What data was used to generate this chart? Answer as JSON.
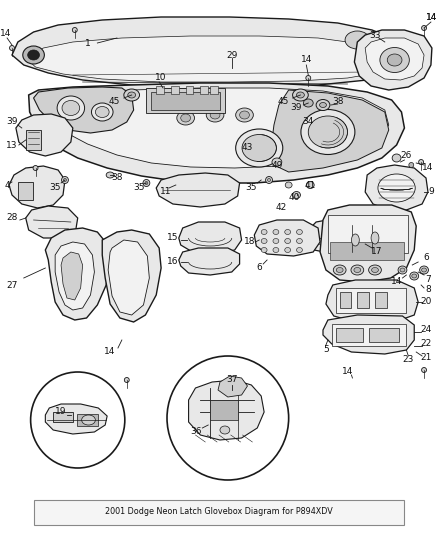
{
  "title": "2001 Dodge Neon Latch Glovebox Diagram for P894XDV",
  "bg": "#ffffff",
  "lc": "#1a1a1a",
  "gray1": "#e8e8e8",
  "gray2": "#d0d0d0",
  "gray3": "#b8b8b8",
  "gray4": "#f2f2f2",
  "label_fs": 6.5,
  "title_fs": 5.8
}
